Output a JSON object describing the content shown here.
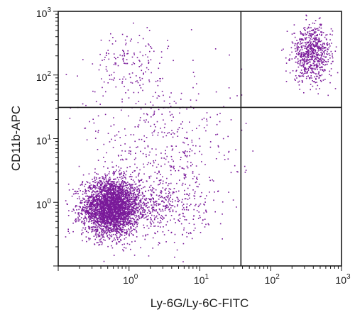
{
  "chart_data": {
    "type": "scatter",
    "title": "",
    "xlabel": "Ly-6G/Ly-6C-FITC",
    "ylabel": "CD11b-APC",
    "x_scale": "log",
    "y_scale": "log",
    "xlim": [
      0.1,
      1000
    ],
    "ylim": [
      0.1,
      1000
    ],
    "x_ticks": [
      {
        "base": "10",
        "exp": "0",
        "value": 1
      },
      {
        "base": "10",
        "exp": "1",
        "value": 10
      },
      {
        "base": "10",
        "exp": "2",
        "value": 100
      },
      {
        "base": "10",
        "exp": "3",
        "value": 1000
      }
    ],
    "y_ticks": [
      {
        "base": "10",
        "exp": "0",
        "value": 1
      },
      {
        "base": "10",
        "exp": "1",
        "value": 10
      },
      {
        "base": "10",
        "exp": "2",
        "value": 100
      },
      {
        "base": "10",
        "exp": "3",
        "value": 1000
      }
    ],
    "quadrant_gates": {
      "x": 38,
      "y": 31
    },
    "grid": false,
    "legend": "none",
    "point_color": "#7a1a9a",
    "populations": [
      {
        "description_id": "neg-neg",
        "center": [
          0.55,
          0.85
        ],
        "spread_log10": [
          0.2,
          0.22
        ],
        "count": 3200
      },
      {
        "description_id": "neg-neg-tail",
        "center": [
          2.5,
          0.9
        ],
        "spread_log10": [
          0.35,
          0.25
        ],
        "count": 500
      },
      {
        "description_id": "pos-pos",
        "center": [
          380,
          220
        ],
        "spread_log10": [
          0.14,
          0.22
        ],
        "count": 700
      },
      {
        "description_id": "cd11b-pos-low",
        "center": [
          1.0,
          150
        ],
        "spread_log10": [
          0.25,
          0.25
        ],
        "count": 160
      },
      {
        "description_id": "diffuse",
        "center": [
          3.0,
          8.0
        ],
        "spread_log10": [
          0.55,
          0.55
        ],
        "count": 420
      }
    ]
  }
}
